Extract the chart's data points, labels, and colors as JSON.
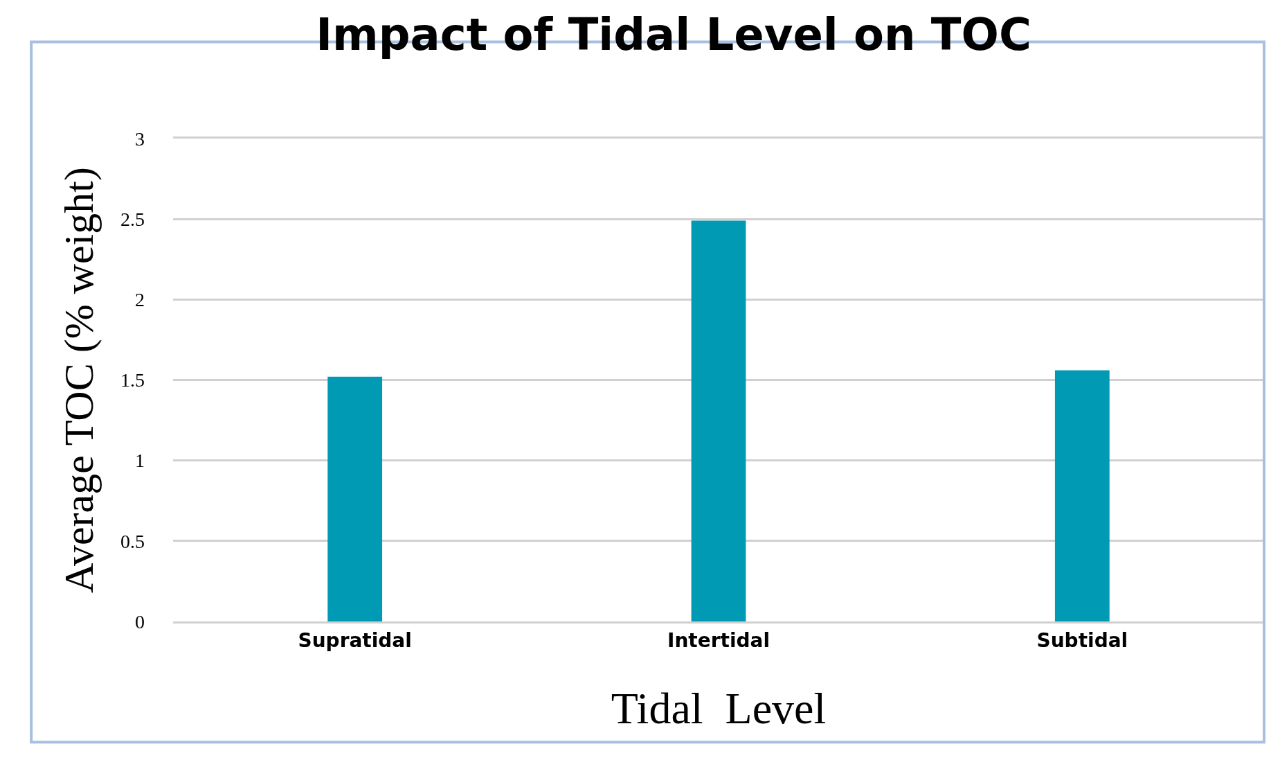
{
  "chart_data": {
    "type": "bar",
    "title": "Impact of Tidal Level on TOC",
    "xlabel": "Tidal  Level",
    "ylabel": "Average TOC (% weight)",
    "categories": [
      "Supratidal",
      "Intertidal",
      "Subtidal"
    ],
    "values": [
      1.52,
      2.49,
      1.56
    ],
    "color": "#009ab5",
    "ylim": [
      0,
      3
    ],
    "yticks": [
      0,
      0.5,
      1,
      1.5,
      2,
      2.5,
      3
    ],
    "grid": "y"
  }
}
